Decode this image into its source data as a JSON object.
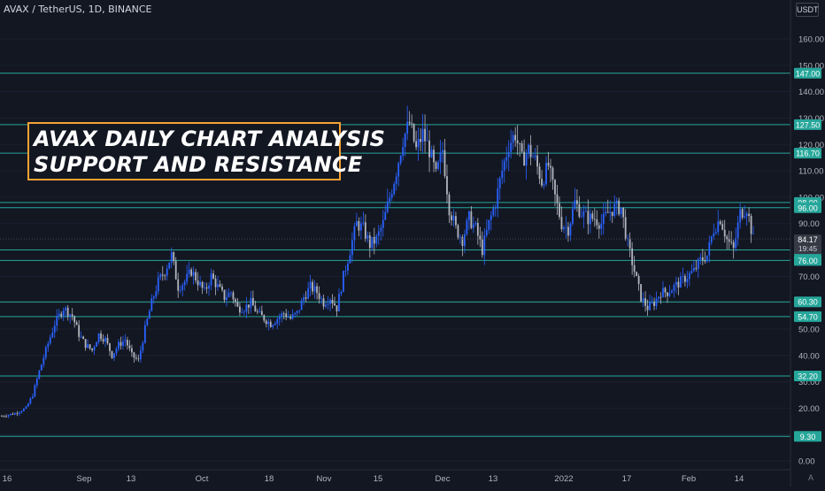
{
  "header": {
    "symbol_label": "AVAX / TetherUS, 1D, BINANCE",
    "currency": "USDT"
  },
  "title_box": {
    "line1": "AVAX DAILY CHART ANALYSIS",
    "line2": "SUPPORT AND RESISTANCE",
    "border_color": "#f7a233"
  },
  "colors": {
    "background": "#131722",
    "bullish": "#2962ff",
    "bearish": "#b2b5be",
    "level_line": "#26a69a",
    "price_tag": "#26a69a",
    "current_price_tag": "#363a45"
  },
  "chart_data": {
    "type": "candlestick",
    "yaxis": {
      "ticks": [
        "0.00",
        "10.00",
        "20.00",
        "30.00",
        "40.00",
        "50.00",
        "60.00",
        "70.00",
        "80.00",
        "90.00",
        "100.00",
        "110.00",
        "120.00",
        "130.00",
        "140.00",
        "150.00",
        "160.00"
      ],
      "ylim": [
        -3,
        168
      ]
    },
    "xaxis": {
      "ticks": [
        "16",
        "Sep",
        "13",
        "Oct",
        "18",
        "Nov",
        "15",
        "Dec",
        "13",
        "2022",
        "17",
        "Feb",
        "14"
      ]
    },
    "current_price": {
      "value": 84.17,
      "label": "84.17",
      "countdown": "19:45"
    },
    "levels": [
      {
        "value": 147.0,
        "label": "147.00"
      },
      {
        "value": 127.5,
        "label": "127.50"
      },
      {
        "value": 116.7,
        "label": "116.70"
      },
      {
        "value": 98.0,
        "label": "98.00"
      },
      {
        "value": 96.0,
        "label": "96.00"
      },
      {
        "value": 80.0,
        "label": "80.00"
      },
      {
        "value": 76.0,
        "label": "76.00"
      },
      {
        "value": 60.3,
        "label": "60.30"
      },
      {
        "value": 54.7,
        "label": "54.70"
      },
      {
        "value": 32.2,
        "label": "32.20"
      },
      {
        "value": 9.3,
        "label": "9.30"
      }
    ],
    "close_path": [
      [
        0,
        17
      ],
      [
        6,
        18
      ],
      [
        11,
        20
      ],
      [
        14,
        25
      ],
      [
        17,
        34
      ],
      [
        20,
        42
      ],
      [
        24,
        52
      ],
      [
        28,
        58
      ],
      [
        32,
        55
      ],
      [
        35,
        48
      ],
      [
        38,
        44
      ],
      [
        41,
        42
      ],
      [
        44,
        48
      ],
      [
        47,
        46
      ],
      [
        50,
        40
      ],
      [
        53,
        44
      ],
      [
        56,
        46
      ],
      [
        59,
        40
      ],
      [
        62,
        38
      ],
      [
        65,
        50
      ],
      [
        68,
        60
      ],
      [
        71,
        68
      ],
      [
        74,
        72
      ],
      [
        77,
        78
      ],
      [
        80,
        66
      ],
      [
        83,
        68
      ],
      [
        86,
        72
      ],
      [
        89,
        68
      ],
      [
        92,
        64
      ],
      [
        95,
        70
      ],
      [
        98,
        66
      ],
      [
        101,
        62
      ],
      [
        104,
        64
      ],
      [
        107,
        58
      ],
      [
        110,
        58
      ],
      [
        113,
        60
      ],
      [
        116,
        56
      ],
      [
        119,
        54
      ],
      [
        122,
        52
      ],
      [
        125,
        54
      ],
      [
        128,
        56
      ],
      [
        131,
        54
      ],
      [
        134,
        56
      ],
      [
        137,
        62
      ],
      [
        140,
        66
      ],
      [
        143,
        64
      ],
      [
        146,
        60
      ],
      [
        149,
        62
      ],
      [
        152,
        58
      ],
      [
        155,
        70
      ],
      [
        158,
        80
      ],
      [
        161,
        90
      ],
      [
        164,
        88
      ],
      [
        167,
        82
      ],
      [
        170,
        84
      ],
      [
        173,
        90
      ],
      [
        176,
        100
      ],
      [
        179,
        110
      ],
      [
        182,
        122
      ],
      [
        185,
        128
      ],
      [
        188,
        118
      ],
      [
        191,
        124
      ],
      [
        194,
        118
      ],
      [
        197,
        108
      ],
      [
        200,
        118
      ],
      [
        203,
        96
      ],
      [
        206,
        88
      ],
      [
        209,
        84
      ],
      [
        212,
        92
      ],
      [
        215,
        88
      ],
      [
        218,
        80
      ],
      [
        221,
        90
      ],
      [
        224,
        98
      ],
      [
        227,
        110
      ],
      [
        230,
        120
      ],
      [
        233,
        124
      ],
      [
        236,
        114
      ],
      [
        239,
        118
      ],
      [
        242,
        114
      ],
      [
        245,
        106
      ],
      [
        248,
        112
      ],
      [
        251,
        100
      ],
      [
        254,
        90
      ],
      [
        257,
        88
      ],
      [
        260,
        98
      ],
      [
        263,
        94
      ],
      [
        266,
        92
      ],
      [
        269,
        92
      ],
      [
        272,
        90
      ],
      [
        275,
        94
      ],
      [
        278,
        96
      ],
      [
        281,
        96
      ],
      [
        284,
        82
      ],
      [
        287,
        72
      ],
      [
        290,
        62
      ],
      [
        293,
        58
      ],
      [
        296,
        60
      ],
      [
        299,
        64
      ],
      [
        302,
        64
      ],
      [
        305,
        66
      ],
      [
        308,
        68
      ],
      [
        311,
        70
      ],
      [
        314,
        72
      ],
      [
        317,
        76
      ],
      [
        320,
        78
      ],
      [
        323,
        88
      ],
      [
        326,
        92
      ],
      [
        329,
        84
      ],
      [
        332,
        80
      ],
      [
        335,
        94
      ],
      [
        338,
        96
      ],
      [
        341,
        84
      ]
    ],
    "candles_note": ""
  }
}
